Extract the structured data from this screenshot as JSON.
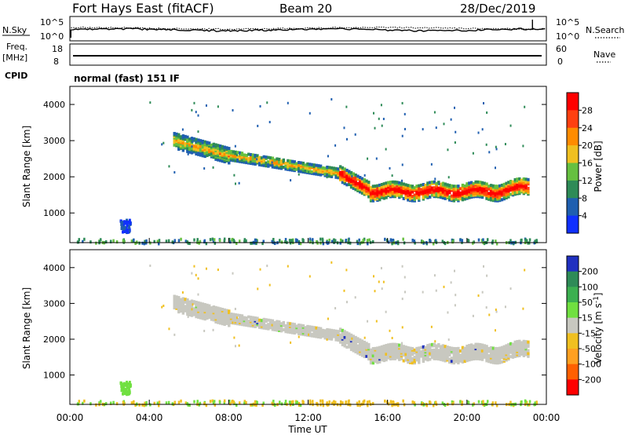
{
  "header": {
    "title": "Fort Hays East (fitACF)",
    "beam": "Beam 20",
    "date": "28/Dec/2019"
  },
  "panels": {
    "nsky": {
      "label": "N.Sky",
      "tick_top": "10^5",
      "tick_bottom": "10^0"
    },
    "nsearch": {
      "label": "N.Search",
      "tick_top": "10^5",
      "tick_bottom": "10^0"
    },
    "freq": {
      "label_1": "Freq.",
      "label_2": "[MHz]",
      "tick_top": "18",
      "tick_bottom": "8"
    },
    "nave": {
      "label": "Nave",
      "tick_top": "60",
      "tick_bottom": "0"
    },
    "cpid": {
      "label": "CPID",
      "value": "normal (fast) 151 IF"
    }
  },
  "chart_data": [
    {
      "type": "heatmap",
      "id": "power",
      "ylabel": "Slant Range [km]",
      "xlabel": "",
      "xlim": [
        0,
        24
      ],
      "ylim": [
        180,
        4500
      ],
      "y_ticks": [
        "1000",
        "2000",
        "3000",
        "4000"
      ],
      "colorbar": {
        "label": "Power [dB]",
        "ticks": [
          "4",
          "8",
          "12",
          "16",
          "20",
          "24",
          "28"
        ],
        "colors": [
          "#1030ff",
          "#1f5fb0",
          "#2e8b57",
          "#66c040",
          "#f0c020",
          "#ff8c00",
          "#ff4010",
          "#ff0000"
        ]
      }
    },
    {
      "type": "heatmap",
      "id": "velocity",
      "ylabel": "Slant Range [km]",
      "xlabel": "Time UT",
      "xlim": [
        0,
        24
      ],
      "ylim": [
        180,
        4500
      ],
      "y_ticks": [
        "1000",
        "2000",
        "3000",
        "4000"
      ],
      "x_ticks": [
        "00:00",
        "04:00",
        "08:00",
        "12:00",
        "16:00",
        "20:00",
        "00:00"
      ],
      "colorbar": {
        "label": "Velocity [m s^-1]",
        "ticks": [
          "200",
          "100",
          "50",
          "15",
          "-15",
          "-50",
          "-100",
          "-200"
        ],
        "colors": [
          "#2030c0",
          "#2e8b57",
          "#3cb050",
          "#70e040",
          "#c8c8c0",
          "#f0c020",
          "#ffa020",
          "#ff6000",
          "#ff0000"
        ]
      }
    }
  ]
}
